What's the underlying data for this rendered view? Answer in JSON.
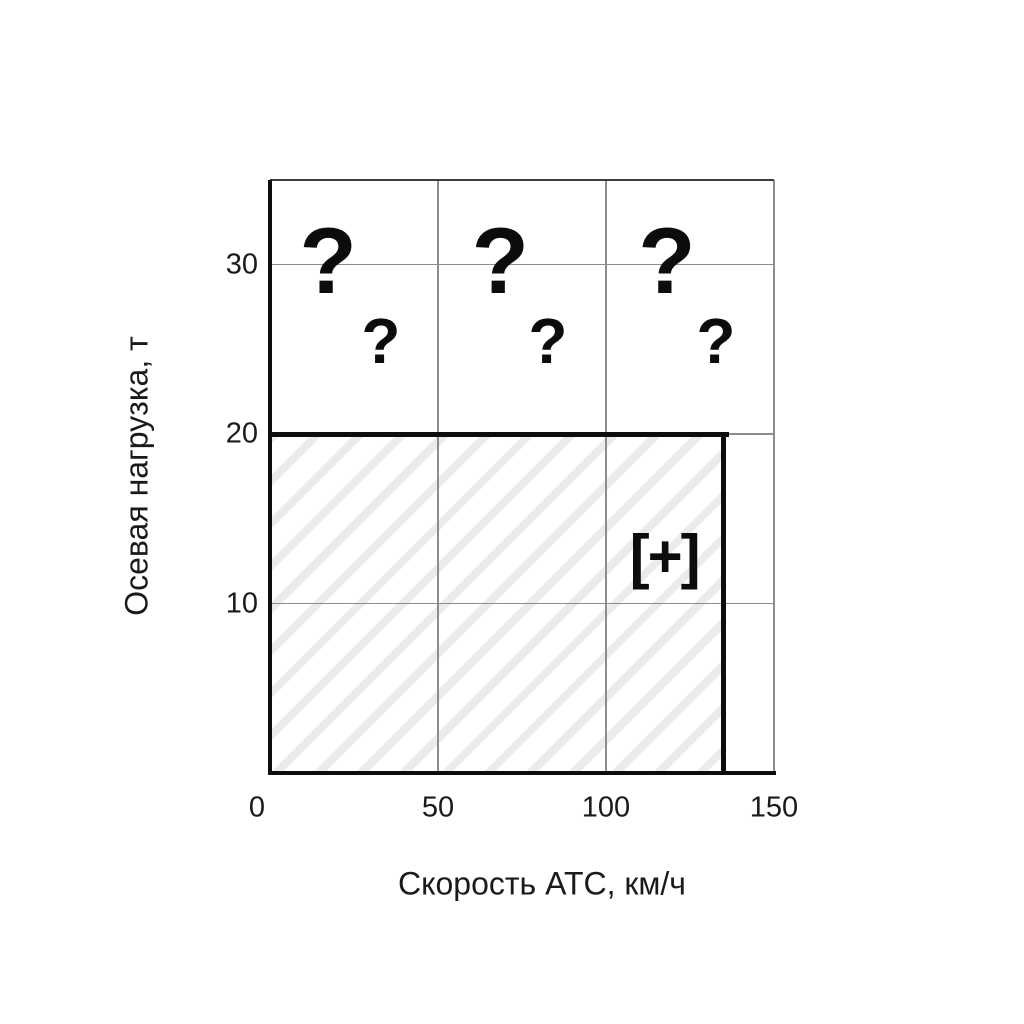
{
  "chart_data": {
    "type": "area",
    "title": "",
    "xlabel": "Скорость АТС, км/ч",
    "ylabel": "Осевая нагрузка, т",
    "xlim": [
      0,
      150
    ],
    "ylim": [
      0,
      35
    ],
    "xticks": [
      0,
      50,
      100,
      150
    ],
    "yticks": [
      10,
      20,
      30
    ],
    "grid": true,
    "legend": "none",
    "region": {
      "name": "permissible-operating-region",
      "max_speed_kmh": 135,
      "max_axle_load_t": 20,
      "hatch": "diagonal-forward",
      "hatch_color": "#ebebeb",
      "border_color": "#0d0d0d"
    },
    "annotations": [
      {
        "text": "?",
        "x": 17.3,
        "y": 30.2,
        "size": "large"
      },
      {
        "text": "?",
        "x": 68.5,
        "y": 30.2,
        "size": "large"
      },
      {
        "text": "?",
        "x": 118.1,
        "y": 30.2,
        "size": "large"
      },
      {
        "text": "?",
        "x": 33.0,
        "y": 25.5,
        "size": "small"
      },
      {
        "text": "?",
        "x": 82.7,
        "y": 25.5,
        "size": "small"
      },
      {
        "text": "?",
        "x": 132.7,
        "y": 25.5,
        "size": "small"
      },
      {
        "text": "[+]",
        "x": 117.3,
        "y": 12.75,
        "size": "plus"
      }
    ],
    "colors": {
      "background": "#ffffff",
      "axis": "#0d0d0d",
      "grid": "#8d8d8d",
      "text": "#1a1a1a"
    }
  }
}
